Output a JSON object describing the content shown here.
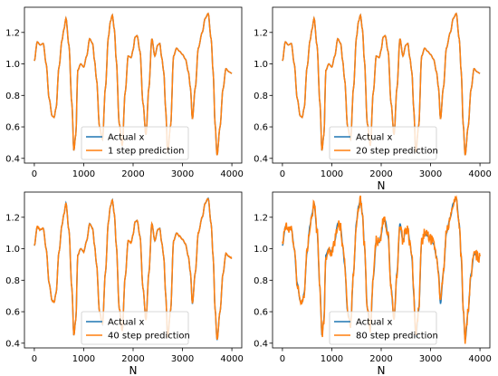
{
  "colors": {
    "actual": "#1f77b4",
    "prediction": "#ff7f0e"
  },
  "chart_data": [
    {
      "type": "line",
      "xlabel": "",
      "xlim": [
        -200,
        4200
      ],
      "ylim": [
        0.37,
        1.36
      ],
      "xticks": [
        "0",
        "1000",
        "2000",
        "3000",
        "4000"
      ],
      "yticks": [
        "0.4",
        "0.6",
        "0.8",
        "1.0",
        "1.2"
      ],
      "legend_position": "lower-center",
      "series": [
        {
          "name": "Actual x",
          "noise": 0.0
        },
        {
          "name": "1 step prediction",
          "noise": 0.0
        }
      ],
      "actual_x": [
        0,
        60,
        120,
        180,
        240,
        300,
        360,
        400,
        440,
        500,
        560,
        600,
        640,
        700,
        760,
        800,
        840,
        880,
        940,
        1000,
        1060,
        1120,
        1180,
        1220,
        1260,
        1320,
        1380,
        1440,
        1500,
        1540,
        1580,
        1620,
        1660,
        1720,
        1780,
        1840,
        1900,
        1960,
        2000,
        2040,
        2080,
        2140,
        2200,
        2260,
        2320,
        2380,
        2440,
        2500,
        2540,
        2580,
        2620,
        2660,
        2700,
        2760,
        2820,
        2880,
        2940,
        3000,
        3060,
        3120,
        3160,
        3200,
        3260,
        3320,
        3400,
        3460,
        3520,
        3580,
        3620,
        3660,
        3700,
        3760,
        3820,
        3880,
        3940,
        4000
      ],
      "actual_y": [
        1.02,
        1.14,
        1.12,
        1.13,
        1.0,
        0.78,
        0.67,
        0.66,
        0.72,
        0.98,
        1.15,
        1.22,
        1.29,
        1.12,
        0.75,
        0.45,
        0.55,
        0.96,
        1.0,
        0.98,
        1.05,
        1.16,
        1.13,
        1.02,
        0.9,
        0.6,
        0.52,
        0.85,
        1.17,
        1.27,
        1.31,
        1.22,
        1.02,
        0.62,
        0.48,
        0.82,
        1.05,
        1.04,
        1.09,
        1.17,
        1.18,
        1.08,
        0.75,
        0.55,
        0.85,
        1.16,
        1.05,
        1.12,
        1.13,
        1.04,
        0.95,
        0.71,
        0.44,
        0.61,
        1.05,
        1.1,
        1.08,
        1.06,
        1.03,
        0.95,
        0.85,
        0.65,
        0.85,
        1.1,
        1.2,
        1.29,
        1.32,
        1.16,
        0.95,
        0.62,
        0.42,
        0.6,
        0.84,
        0.97,
        0.95,
        0.94
      ]
    },
    {
      "type": "line",
      "xlabel": "N",
      "xlim": [
        -200,
        4200
      ],
      "ylim": [
        0.37,
        1.36
      ],
      "xticks": [
        "0",
        "1000",
        "2000",
        "3000",
        "4000"
      ],
      "yticks": [
        "0.4",
        "0.6",
        "0.8",
        "1.0",
        "1.2"
      ],
      "legend_position": "lower-center",
      "series": [
        {
          "name": "Actual x",
          "noise": 0.0
        },
        {
          "name": "20 step prediction",
          "noise": 0.0
        }
      ]
    },
    {
      "type": "line",
      "xlabel": "N",
      "xlim": [
        -200,
        4200
      ],
      "ylim": [
        0.37,
        1.36
      ],
      "xticks": [
        "0",
        "1000",
        "2000",
        "3000",
        "4000"
      ],
      "yticks": [
        "0.4",
        "0.6",
        "0.8",
        "1.0",
        "1.2"
      ],
      "legend_position": "lower-center",
      "series": [
        {
          "name": "Actual x",
          "noise": 0.0
        },
        {
          "name": "40 step prediction",
          "noise": 0.004
        }
      ]
    },
    {
      "type": "line",
      "xlabel": "N",
      "xlim": [
        -200,
        4200
      ],
      "ylim": [
        0.37,
        1.36
      ],
      "xticks": [
        "0",
        "1000",
        "2000",
        "3000",
        "4000"
      ],
      "yticks": [
        "0.4",
        "0.6",
        "0.8",
        "1.0",
        "1.2"
      ],
      "legend_position": "lower-center",
      "series": [
        {
          "name": "Actual x",
          "noise": 0.0
        },
        {
          "name": "80 step prediction",
          "noise": 0.035
        }
      ]
    }
  ]
}
